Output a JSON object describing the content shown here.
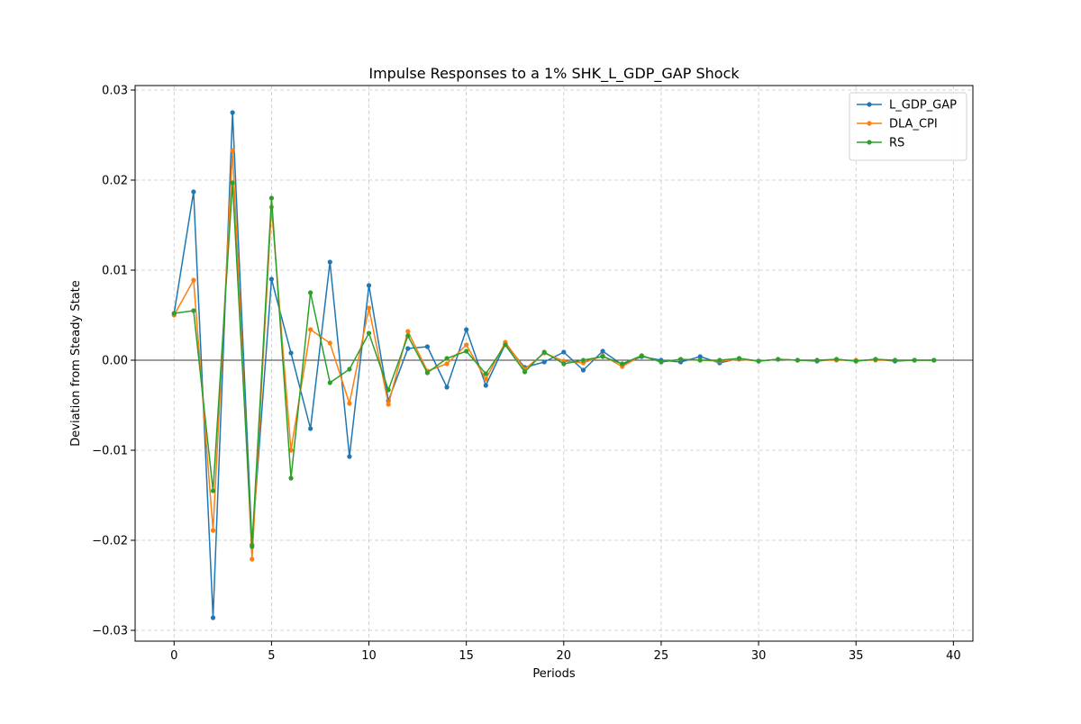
{
  "chart_data": {
    "type": "line",
    "title": "Impulse Responses to a 1% SHK_L_GDP_GAP Shock",
    "xlabel": "Periods",
    "ylabel": "Deviation from Steady State",
    "xlim": [
      -2,
      41
    ],
    "ylim": [
      -0.0312,
      0.0305
    ],
    "xticks": [
      0,
      5,
      10,
      15,
      20,
      25,
      30,
      35,
      40
    ],
    "xtick_labels": [
      "0",
      "5",
      "10",
      "15",
      "20",
      "25",
      "30",
      "35",
      "40"
    ],
    "yticks": [
      -0.03,
      -0.02,
      -0.01,
      0.0,
      0.01,
      0.02,
      0.03
    ],
    "ytick_labels": [
      "−0.03",
      "−0.02",
      "−0.01",
      "0.00",
      "0.01",
      "0.02",
      "0.03"
    ],
    "grid": true,
    "zero_line": true,
    "legend_position": "top-right",
    "x": [
      0,
      1,
      2,
      3,
      4,
      5,
      6,
      7,
      8,
      9,
      10,
      11,
      12,
      13,
      14,
      15,
      16,
      17,
      18,
      19,
      20,
      21,
      22,
      23,
      24,
      25,
      26,
      27,
      28,
      29,
      30,
      31,
      32,
      33,
      34,
      35,
      36,
      37,
      38,
      39
    ],
    "series": [
      {
        "name": "L_GDP_GAP",
        "color": "#1f77b4",
        "values": [
          0.0052,
          0.0187,
          -0.0286,
          0.0275,
          -0.0205,
          0.009,
          0.0008,
          -0.0076,
          0.0109,
          -0.0107,
          0.0083,
          -0.0045,
          0.0013,
          0.0015,
          -0.003,
          0.0034,
          -0.0028,
          0.0018,
          -0.0008,
          -0.0002,
          0.0009,
          -0.0011,
          0.001,
          -0.0005,
          0.0004,
          0.0,
          -0.0002,
          0.0004,
          -0.0003,
          0.0002,
          -0.0001,
          0.0001,
          0.0,
          -0.0001,
          0.0001,
          -0.0001,
          0.0001,
          -0.0001,
          0.0,
          0.0
        ]
      },
      {
        "name": "DLA_CPI",
        "color": "#ff7f0e",
        "values": [
          0.005,
          0.0089,
          -0.0189,
          0.0233,
          -0.0221,
          0.017,
          -0.01,
          0.0034,
          0.0019,
          -0.0048,
          0.0058,
          -0.0049,
          0.0032,
          -0.0012,
          -0.0004,
          0.0017,
          -0.0021,
          0.002,
          -0.001,
          0.0008,
          -0.0001,
          -0.0003,
          0.0005,
          -0.0007,
          0.0005,
          -0.0002,
          0.0001,
          0.0,
          -0.0001,
          0.0001,
          -0.0001,
          0.0001,
          0.0,
          0.0,
          0.0,
          0.0,
          0.0,
          0.0,
          0.0,
          0.0
        ]
      },
      {
        "name": "RS",
        "color": "#2ca02c",
        "values": [
          0.0052,
          0.0055,
          -0.0145,
          0.0197,
          -0.0207,
          0.018,
          -0.0131,
          0.0075,
          -0.0025,
          -0.001,
          0.003,
          -0.0033,
          0.0027,
          -0.0014,
          0.0002,
          0.001,
          -0.0015,
          0.0017,
          -0.0013,
          0.0009,
          -0.0004,
          0.0,
          0.0004,
          -0.0004,
          0.0005,
          -0.0002,
          0.0001,
          0.0,
          0.0,
          0.0002,
          -0.0001,
          0.0001,
          0.0,
          0.0,
          0.0001,
          -0.0001,
          0.0001,
          0.0,
          0.0,
          0.0
        ]
      }
    ]
  }
}
